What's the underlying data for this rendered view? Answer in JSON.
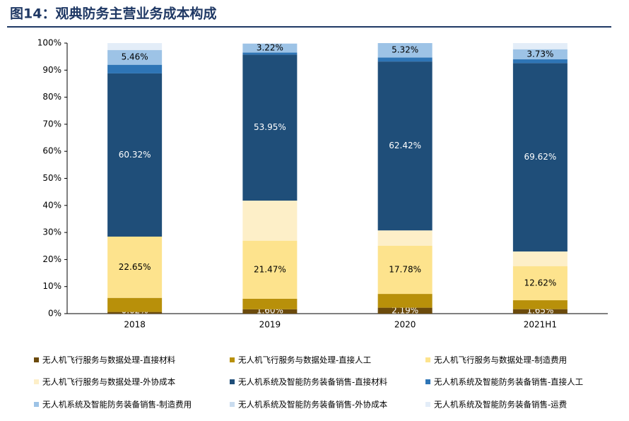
{
  "chart_data": {
    "type": "stacked_bar",
    "title": "图14：观典防务主营业务成本构成",
    "categories": [
      "2018",
      "2019",
      "2020",
      "2021H1"
    ],
    "ylim": [
      0,
      100
    ],
    "yticks": [
      {
        "value": 0,
        "label": "0%"
      },
      {
        "value": 10,
        "label": "10%"
      },
      {
        "value": 20,
        "label": "20%"
      },
      {
        "value": 30,
        "label": "30%"
      },
      {
        "value": 40,
        "label": "40%"
      },
      {
        "value": 50,
        "label": "50%"
      },
      {
        "value": 60,
        "label": "60%"
      },
      {
        "value": 70,
        "label": "70%"
      },
      {
        "value": 80,
        "label": "80%"
      },
      {
        "value": 90,
        "label": "90%"
      },
      {
        "value": 100,
        "label": "100%"
      }
    ],
    "legend": "bottom",
    "series": [
      {
        "name": "无人机飞行服务与数据处理-直接材料",
        "color": "#6b4a0c",
        "values": [
          0.62,
          1.6,
          2.19,
          1.65
        ],
        "value_labels": [
          "0.62%",
          "1.60%",
          "2.19%",
          "1.65%"
        ]
      },
      {
        "name": "无人机飞行服务与数据处理-直接人工",
        "color": "#b8900a",
        "values": [
          5.2,
          3.9,
          5.1,
          3.3
        ],
        "value_labels": [
          null,
          null,
          null,
          null
        ]
      },
      {
        "name": "无人机飞行服务与数据处理-制造费用",
        "color": "#fde38d",
        "values": [
          22.65,
          21.47,
          17.78,
          12.62
        ],
        "value_labels": [
          "22.65%",
          "21.47%",
          "17.78%",
          "12.62%"
        ]
      },
      {
        "name": "无人机飞行服务与数据处理-外协成本",
        "color": "#fdefc8",
        "values": [
          0,
          14.8,
          5.69,
          5.4
        ],
        "value_labels": [
          null,
          null,
          null,
          null
        ]
      },
      {
        "name": "无人机系统及智能防务装备销售-直接材料",
        "color": "#1f4e79",
        "values": [
          60.32,
          53.95,
          62.42,
          69.62
        ],
        "value_labels": [
          "60.32%",
          "53.95%",
          "62.42%",
          "69.62%"
        ]
      },
      {
        "name": "无人机系统及智能防务装备销售-直接人工",
        "color": "#2e75b6",
        "values": [
          3.2,
          0.8,
          1.5,
          1.4
        ],
        "value_labels": [
          null,
          null,
          null,
          null
        ]
      },
      {
        "name": "无人机系统及智能防务装备销售-制造费用",
        "color": "#9dc3e6",
        "values": [
          5.46,
          3.22,
          5.32,
          3.73
        ],
        "value_labels": [
          "5.46%",
          "3.22%",
          "5.32%",
          "3.73%"
        ]
      },
      {
        "name": "无人机系统及智能防务装备销售-外协成本",
        "color": "#c9dcef",
        "values": [
          0,
          0,
          0,
          0
        ],
        "value_labels": [
          null,
          null,
          null,
          null
        ]
      },
      {
        "name": "无人机系统及智能防务装备销售-运费",
        "color": "#e3edf8",
        "values": [
          2.55,
          0.26,
          0,
          2.28
        ],
        "value_labels": [
          null,
          null,
          null,
          null
        ]
      }
    ]
  }
}
